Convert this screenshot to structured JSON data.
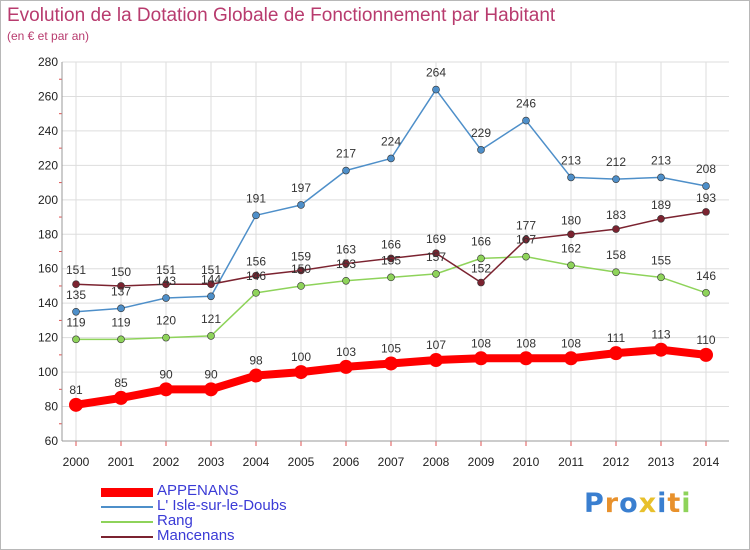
{
  "chart_data": {
    "type": "line",
    "title": "Evolution de la Dotation Globale de Fonctionnement par Habitant",
    "subtitle": "(en € et par an)",
    "x": [
      "2000",
      "2001",
      "2002",
      "2003",
      "2004",
      "2005",
      "2006",
      "2007",
      "2008",
      "2009",
      "2010",
      "2011",
      "2012",
      "2013",
      "2014"
    ],
    "ylim": [
      60,
      280
    ],
    "yticks": [
      60,
      80,
      100,
      120,
      140,
      160,
      180,
      200,
      220,
      240,
      260,
      280
    ],
    "grid": true,
    "legend_position": "bottom-left",
    "series": [
      {
        "name": "APPENANS",
        "color": "#ff0000",
        "values": [
          81,
          85,
          90,
          90,
          98,
          100,
          103,
          105,
          107,
          108,
          108,
          108,
          111,
          113,
          110
        ]
      },
      {
        "name": "L' Isle-sur-le-Doubs",
        "color": "#4e8fc9",
        "values": [
          135,
          137,
          143,
          144,
          191,
          197,
          217,
          224,
          264,
          229,
          246,
          213,
          212,
          213,
          208
        ]
      },
      {
        "name": "Rang",
        "color": "#8ed35a",
        "values": [
          119,
          119,
          120,
          121,
          146,
          150,
          153,
          155,
          157,
          166,
          167,
          162,
          158,
          155,
          146
        ]
      },
      {
        "name": "Mancenans",
        "color": "#7b2330",
        "values": [
          151,
          150,
          151,
          151,
          156,
          159,
          163,
          166,
          169,
          152,
          177,
          180,
          183,
          189,
          193
        ]
      }
    ]
  },
  "logo": {
    "letters": [
      "P",
      "r",
      "o",
      "x",
      "i",
      "t",
      "i"
    ],
    "colors": [
      "#3a7fd0",
      "#e8912c",
      "#3a7fd0",
      "#e8c02c",
      "#3a7fd0",
      "#e8912c",
      "#8ed35a"
    ]
  }
}
